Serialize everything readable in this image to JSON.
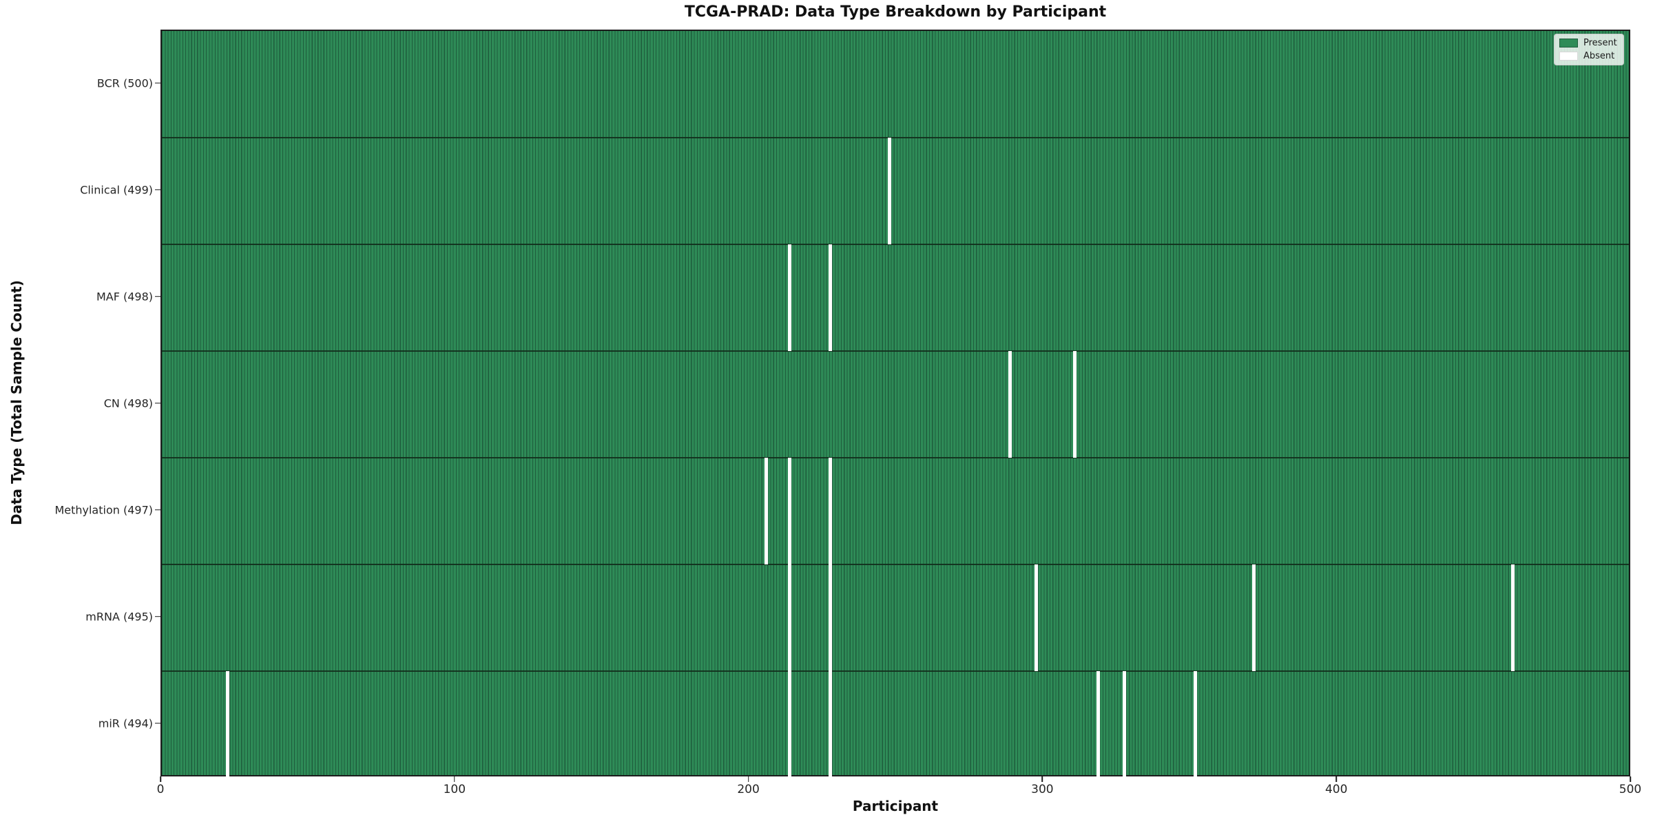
{
  "title": "TCGA-PRAD: Data Type Breakdown by Participant",
  "xlabel": "Participant",
  "ylabel": "Data Type (Total Sample Count)",
  "legend": {
    "present_label": "Present",
    "absent_label": "Absent"
  },
  "colors": {
    "present": "#2E8B57",
    "present_edge": "#1E5C3C",
    "absent": "#FFFFFF",
    "row_divider": "#122C1C",
    "spine": "#1C1C1C"
  },
  "chart_data": {
    "type": "heatmap",
    "title": "TCGA-PRAD: Data Type Breakdown by Participant",
    "xlabel": "Participant",
    "ylabel": "Data Type (Total Sample Count)",
    "x_range": [
      0,
      500
    ],
    "x_ticks": [
      0,
      100,
      200,
      300,
      400,
      500
    ],
    "n_participants": 500,
    "grid": false,
    "legend_position": "upper right",
    "legend_entries": [
      "Present",
      "Absent"
    ],
    "rows": [
      {
        "label": "BCR (500)",
        "name": "BCR",
        "total": 500,
        "absent_participants": []
      },
      {
        "label": "Clinical (499)",
        "name": "Clinical",
        "total": 499,
        "absent_participants": [
          247
        ]
      },
      {
        "label": "MAF (498)",
        "name": "MAF",
        "total": 498,
        "absent_participants": [
          213,
          227
        ]
      },
      {
        "label": "CN (498)",
        "name": "CN",
        "total": 498,
        "absent_participants": [
          288,
          310
        ]
      },
      {
        "label": "Methylation (497)",
        "name": "Methylation",
        "total": 497,
        "absent_participants": [
          205,
          213,
          227
        ]
      },
      {
        "label": "mRNA (495)",
        "name": "mRNA",
        "total": 495,
        "absent_participants": [
          213,
          227,
          297,
          371,
          459
        ]
      },
      {
        "label": "miR (494)",
        "name": "miR",
        "total": 494,
        "absent_participants": [
          22,
          213,
          227,
          318,
          327,
          351
        ]
      }
    ]
  }
}
